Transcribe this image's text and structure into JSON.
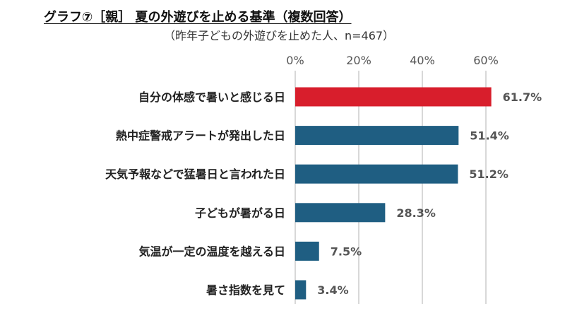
{
  "chart_data": {
    "type": "bar",
    "orientation": "horizontal",
    "title": "グラフ⑦［親］ 夏の外遊びを止める基準（複数回答）",
    "subtitle": "（昨年子どもの外遊びを止めた人、n=467）",
    "categories": [
      "自分の体感で暑いと感じる日",
      "熱中症警戒アラートが発出した日",
      "天気予報などで猛暑日と言われた日",
      "子どもが暑がる日",
      "気温が一定の温度を越える日",
      "暑さ指数を見て"
    ],
    "values": [
      61.7,
      51.4,
      51.2,
      28.3,
      7.5,
      3.4
    ],
    "value_labels": [
      "61.7%",
      "51.4%",
      "51.2%",
      "28.3%",
      "7.5%",
      "3.4%"
    ],
    "xlim": [
      0,
      60
    ],
    "xticks": [
      0,
      20,
      40,
      60
    ],
    "xtick_labels": [
      "0%",
      "20%",
      "40%",
      "60%"
    ],
    "axis_position": "top",
    "grid": true,
    "colors": {
      "highlight": "#d81e2c",
      "bar": "#1f5e82",
      "grid": "#cccccc"
    },
    "highlight_index": 0
  }
}
